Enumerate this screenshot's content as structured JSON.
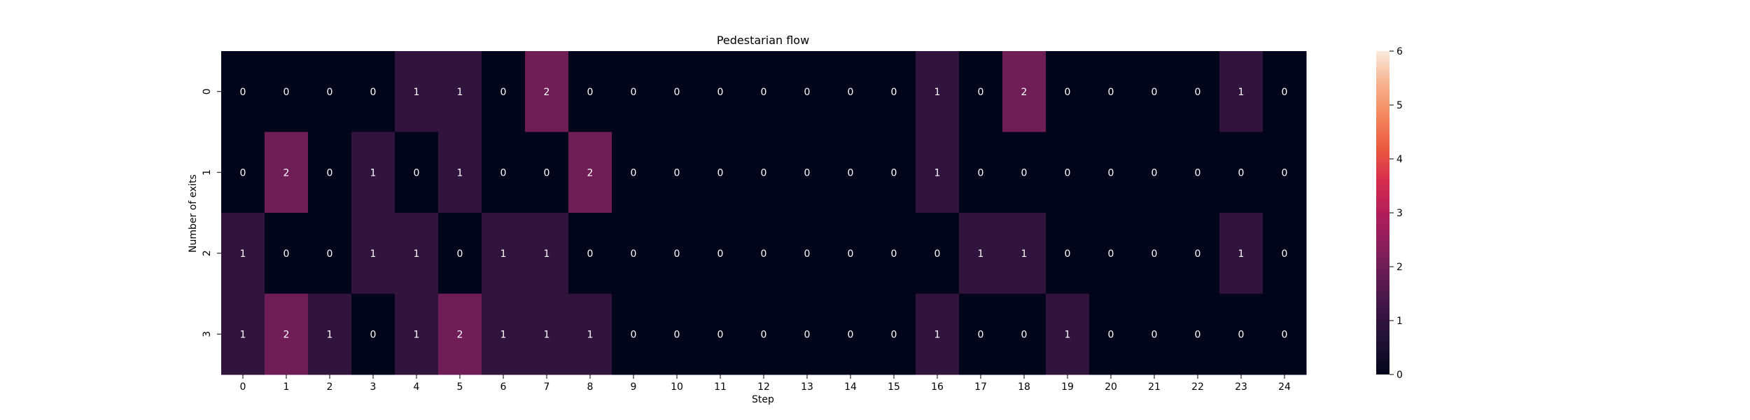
{
  "chart_data": {
    "type": "heatmap",
    "title": "Pedestarian flow",
    "xlabel": "Step",
    "ylabel": "Number of exits",
    "x_categories": [
      "0",
      "1",
      "2",
      "3",
      "4",
      "5",
      "6",
      "7",
      "8",
      "9",
      "10",
      "11",
      "12",
      "13",
      "14",
      "15",
      "16",
      "17",
      "18",
      "19",
      "20",
      "21",
      "22",
      "23",
      "24"
    ],
    "y_categories": [
      "0",
      "1",
      "2",
      "3"
    ],
    "values": [
      [
        0,
        0,
        0,
        0,
        1,
        1,
        0,
        2,
        0,
        0,
        0,
        0,
        0,
        0,
        0,
        0,
        1,
        0,
        2,
        0,
        0,
        0,
        0,
        1,
        0
      ],
      [
        0,
        2,
        0,
        1,
        0,
        1,
        0,
        0,
        2,
        0,
        0,
        0,
        0,
        0,
        0,
        0,
        1,
        0,
        0,
        0,
        0,
        0,
        0,
        0,
        0
      ],
      [
        1,
        0,
        0,
        1,
        1,
        0,
        1,
        1,
        0,
        0,
        0,
        0,
        0,
        0,
        0,
        0,
        0,
        1,
        1,
        0,
        0,
        0,
        0,
        1,
        0
      ],
      [
        1,
        2,
        1,
        0,
        1,
        2,
        1,
        1,
        1,
        0,
        0,
        0,
        0,
        0,
        0,
        0,
        1,
        0,
        0,
        1,
        0,
        0,
        0,
        0,
        0
      ]
    ],
    "annotated": true,
    "colormap": "rocket",
    "colorbar": {
      "range": [
        0,
        6
      ],
      "ticks": [
        "0",
        "1",
        "2",
        "3",
        "4",
        "5",
        "6"
      ]
    },
    "colors": {
      "annotation_text": "#ffffff",
      "axis_text": "#000000",
      "stops": [
        "#03051a",
        "#1e1233",
        "#3b1544",
        "#611c52",
        "#8c1e5b",
        "#b31e59",
        "#d62e4e",
        "#eb5a3f",
        "#f4875e",
        "#f6b38f",
        "#faebdd"
      ]
    }
  }
}
